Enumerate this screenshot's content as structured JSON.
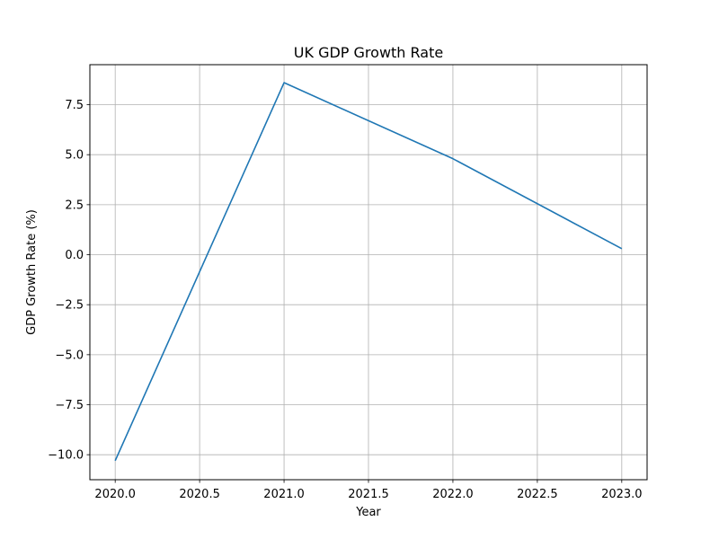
{
  "chart_data": {
    "type": "line",
    "title": "UK GDP Growth Rate",
    "xlabel": "Year",
    "ylabel": "GDP Growth Rate (%)",
    "x": [
      2020,
      2021,
      2022,
      2023
    ],
    "series": [
      {
        "values": [
          -10.3,
          8.6,
          4.8,
          0.3
        ]
      }
    ],
    "xlim": [
      2019.85,
      2023.15
    ],
    "ylim": [
      -11.25,
      9.5
    ],
    "xticks": [
      2020.0,
      2020.5,
      2021.0,
      2021.5,
      2022.0,
      2022.5,
      2023.0
    ],
    "xtick_labels": [
      "2020.0",
      "2020.5",
      "2021.0",
      "2021.5",
      "2022.0",
      "2022.5",
      "2023.0"
    ],
    "yticks": [
      -10.0,
      -7.5,
      -5.0,
      -2.5,
      0.0,
      2.5,
      5.0,
      7.5
    ],
    "ytick_labels": [
      "−10.0",
      "−7.5",
      "−5.0",
      "−2.5",
      "0.0",
      "2.5",
      "5.0",
      "7.5"
    ],
    "grid": true,
    "colors": {
      "line": "#1f77b4",
      "grid": "#b0b0b0",
      "axes": "#000000"
    }
  }
}
